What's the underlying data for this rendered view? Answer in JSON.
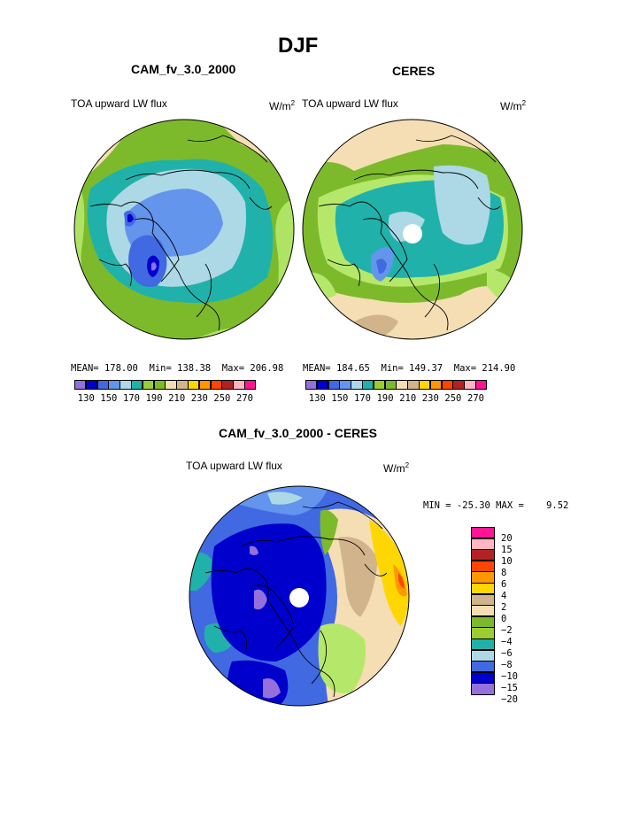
{
  "title": "DJF",
  "panel1": {
    "title": "CAM_fv_3.0_2000",
    "var_label": "TOA upward LW flux",
    "units_base": "W/m",
    "units_sup": "2",
    "mean_label": "MEAN=",
    "mean": "178.00",
    "min_label": "Min=",
    "min": "138.38",
    "max_label": "Max=",
    "max": "206.98"
  },
  "panel2": {
    "title": "CERES",
    "var_label": "TOA upward LW flux",
    "units_base": "W/m",
    "units_sup": "2",
    "mean_label": "MEAN=",
    "mean": "184.65",
    "min_label": "Min=",
    "min": "149.37",
    "max_label": "Max=",
    "max": "214.90"
  },
  "panel3": {
    "title": "CAM_fv_3.0_2000 - CERES",
    "var_label": "TOA upward LW flux",
    "units_base": "W/m",
    "units_sup": "2",
    "minmax_text": "MIN = -25.30 MAX =    9.52"
  },
  "colorbar_abs": {
    "colors": [
      "#9370db",
      "#0000cd",
      "#4169e1",
      "#6495ed",
      "#add8e6",
      "#20b2aa",
      "#9acd32",
      "#7cba2c",
      "#f5deb3",
      "#d2b48c",
      "#ffd700",
      "#ff9800",
      "#ff4500",
      "#b22222",
      "#ffb6c1",
      "#ff1493"
    ],
    "tick_labels": [
      "130",
      "150",
      "170",
      "190",
      "210",
      "230",
      "250",
      "270"
    ]
  },
  "colorbar_diff": {
    "colors": [
      "#ff1493",
      "#ffb6c1",
      "#b22222",
      "#ff4500",
      "#ff9800",
      "#ffd700",
      "#d2b48c",
      "#f5deb3",
      "#7cba2c",
      "#9acd32",
      "#20b2aa",
      "#add8e6",
      "#4169e1",
      "#0000cd",
      "#9370db"
    ],
    "tick_labels": [
      "20",
      "15",
      "10",
      "8",
      "6",
      "4",
      "2",
      "0",
      "−2",
      "−4",
      "−6",
      "−8",
      "−10",
      "−15",
      "−20"
    ]
  },
  "map_colors": {
    "tan": "#f5deb3",
    "green": "#7cba2c",
    "lightgreen": "#b5e86a",
    "teal": "#20b2aa",
    "lightblue": "#add8e6",
    "cornflower": "#6495ed",
    "royal": "#4169e1",
    "navy": "#0000cd",
    "purple": "#9370db",
    "brown": "#d2b48c",
    "gold": "#ffd700",
    "orange": "#ff9800",
    "red": "#ff4500"
  },
  "chart_data": [
    {
      "type": "heatmap",
      "title": "CAM_fv_3.0_2000",
      "subtitle": "TOA upward LW flux",
      "units": "W/m^2",
      "projection": "north polar stereographic",
      "stats": {
        "mean": 178.0,
        "min": 138.38,
        "max": 206.98
      },
      "colorbar_levels": [
        130,
        140,
        150,
        160,
        170,
        180,
        190,
        200,
        210,
        220,
        230,
        240,
        250,
        260,
        270
      ]
    },
    {
      "type": "heatmap",
      "title": "CERES",
      "subtitle": "TOA upward LW flux",
      "units": "W/m^2",
      "projection": "north polar stereographic",
      "stats": {
        "mean": 184.65,
        "min": 149.37,
        "max": 214.9
      },
      "colorbar_levels": [
        130,
        140,
        150,
        160,
        170,
        180,
        190,
        200,
        210,
        220,
        230,
        240,
        250,
        260,
        270
      ]
    },
    {
      "type": "heatmap",
      "title": "CAM_fv_3.0_2000 - CERES",
      "subtitle": "TOA upward LW flux",
      "units": "W/m^2",
      "projection": "north polar stereographic",
      "stats": {
        "min": -25.3,
        "max": 9.52
      },
      "colorbar_levels": [
        20,
        15,
        10,
        8,
        6,
        4,
        2,
        0,
        -2,
        -4,
        -6,
        -8,
        -10,
        -15,
        -20
      ]
    }
  ]
}
